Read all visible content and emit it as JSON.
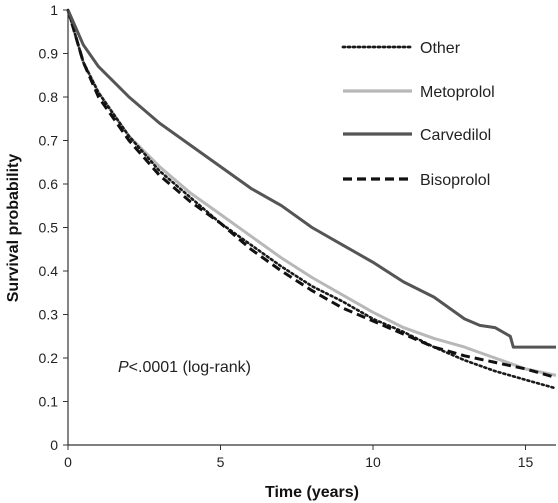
{
  "chart_data": {
    "type": "line",
    "xlabel": "Time (years)",
    "ylabel": "Survival probability",
    "xlim": [
      0,
      16
    ],
    "ylim": [
      0,
      1
    ],
    "xticks": [
      "0",
      "5",
      "10",
      "15"
    ],
    "yticks": [
      "0",
      "0.1",
      "0.2",
      "0.3",
      "0.4",
      "0.5",
      "0.6",
      "0.7",
      "0.8",
      "0.9",
      "1"
    ],
    "grid": false,
    "legend_position": "top-right",
    "annotation": {
      "italic": "P",
      "rest": "<.0001 (log-rank)"
    },
    "series": [
      {
        "name": "Other",
        "color": "#1a1a1a",
        "style": "dotted",
        "x": [
          0,
          0.5,
          1,
          2,
          3,
          4,
          5,
          6,
          7,
          8,
          9,
          10,
          11,
          12,
          13,
          14,
          15,
          16
        ],
        "y": [
          1.0,
          0.88,
          0.81,
          0.71,
          0.63,
          0.57,
          0.51,
          0.46,
          0.41,
          0.365,
          0.33,
          0.29,
          0.26,
          0.225,
          0.195,
          0.17,
          0.15,
          0.13
        ]
      },
      {
        "name": "Metoprolol",
        "color": "#b8b8b8",
        "style": "solid",
        "x": [
          0,
          0.5,
          1,
          2,
          3,
          4,
          5,
          6,
          7,
          8,
          9,
          10,
          11,
          12,
          13,
          14,
          15,
          16
        ],
        "y": [
          1.0,
          0.88,
          0.81,
          0.71,
          0.64,
          0.58,
          0.53,
          0.48,
          0.43,
          0.385,
          0.345,
          0.305,
          0.27,
          0.245,
          0.225,
          0.2,
          0.175,
          0.16
        ]
      },
      {
        "name": "Carvedilol",
        "color": "#555555",
        "style": "solid",
        "x": [
          0,
          0.5,
          1,
          2,
          3,
          4,
          5,
          6,
          7,
          8,
          9,
          10,
          11,
          12,
          13,
          13.5,
          14,
          14.5,
          14.6,
          15,
          16
        ],
        "y": [
          1.0,
          0.92,
          0.87,
          0.8,
          0.74,
          0.69,
          0.64,
          0.59,
          0.55,
          0.5,
          0.46,
          0.42,
          0.375,
          0.34,
          0.29,
          0.275,
          0.27,
          0.25,
          0.225,
          0.225,
          0.225
        ]
      },
      {
        "name": "Bisoprolol",
        "color": "#111111",
        "style": "dashed",
        "x": [
          0,
          0.5,
          1,
          2,
          3,
          4,
          5,
          6,
          7,
          8,
          9,
          10,
          11,
          12,
          13,
          14,
          15,
          16
        ],
        "y": [
          1.0,
          0.88,
          0.8,
          0.7,
          0.62,
          0.56,
          0.51,
          0.45,
          0.4,
          0.355,
          0.315,
          0.285,
          0.255,
          0.225,
          0.205,
          0.19,
          0.175,
          0.155
        ]
      }
    ]
  }
}
